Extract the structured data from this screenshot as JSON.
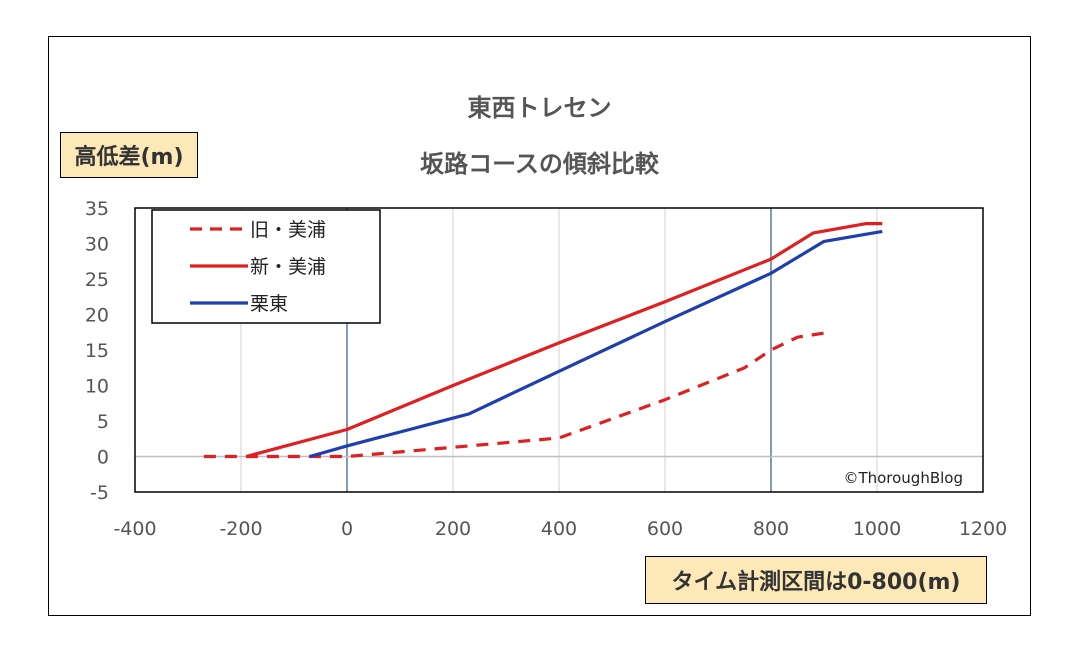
{
  "chart_data": {
    "type": "line",
    "title_lines": [
      "東西トレセン",
      "坂路コースの傾斜比較"
    ],
    "ylabel": "高低差(m)",
    "xlabel": "タイム計測区間は0-800(m)",
    "xlim": [
      -400,
      1200
    ],
    "ylim": [
      -5,
      35
    ],
    "x_ticks": [
      -400,
      -200,
      0,
      200,
      400,
      600,
      800,
      1000,
      1200
    ],
    "y_ticks": [
      -5,
      0,
      5,
      10,
      15,
      20,
      25,
      30,
      35
    ],
    "grid": "vertical",
    "reference_lines_x": [
      0,
      800
    ],
    "legend_position": "top-left",
    "annotation": "©ThoroughBlog",
    "series": [
      {
        "name": "旧・美浦",
        "style": "dashed",
        "color": "#e02020",
        "points": [
          [
            -270,
            0
          ],
          [
            -200,
            0
          ],
          [
            0,
            0
          ],
          [
            200,
            1.3
          ],
          [
            400,
            2.6
          ],
          [
            600,
            8
          ],
          [
            750,
            12.5
          ],
          [
            800,
            15
          ],
          [
            850,
            16.8
          ],
          [
            910,
            17.5
          ]
        ]
      },
      {
        "name": "新・美浦",
        "style": "solid",
        "color": "#e02020",
        "points": [
          [
            -190,
            0
          ],
          [
            0,
            3.8
          ],
          [
            200,
            10
          ],
          [
            400,
            16
          ],
          [
            600,
            21.8
          ],
          [
            800,
            27.8
          ],
          [
            880,
            31.5
          ],
          [
            980,
            32.8
          ],
          [
            1010,
            32.8
          ]
        ]
      },
      {
        "name": "栗東",
        "style": "solid",
        "color": "#1f3fae",
        "points": [
          [
            -70,
            0
          ],
          [
            0,
            1.5
          ],
          [
            230,
            6
          ],
          [
            400,
            12
          ],
          [
            600,
            19
          ],
          [
            800,
            25.8
          ],
          [
            900,
            30.3
          ],
          [
            1010,
            31.7
          ]
        ]
      }
    ]
  }
}
